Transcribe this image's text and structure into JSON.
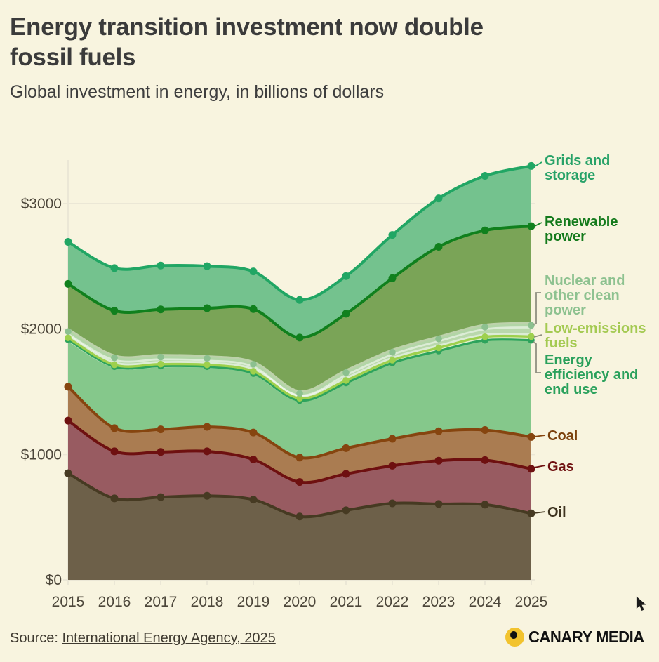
{
  "header": {
    "title_line1": "Energy transition investment now double",
    "title_line2": "fossil fuels",
    "subtitle": "Global investment in energy, in billions of dollars"
  },
  "footer": {
    "source_prefix": "Source: ",
    "source_link": "International Energy Agency, 2025",
    "brand": "CANARY MEDIA"
  },
  "colors": {
    "background": "#f8f4df",
    "gridline": "#ebe7d6",
    "axis_text": "#4c463a",
    "title_text": "#3b3b3b",
    "connector": "#8f9080"
  },
  "chart_data": {
    "type": "area",
    "stacked": true,
    "title": "Energy transition investment now double fossil fuels",
    "subtitle": "Global investment in energy, in billions of dollars",
    "unit": "billions of US dollars",
    "x": [
      2015,
      2016,
      2017,
      2018,
      2019,
      2020,
      2021,
      2022,
      2023,
      2024,
      2025
    ],
    "x_tick_labels": [
      "2015",
      "2016",
      "2017",
      "2018",
      "2019",
      "2020",
      "2021",
      "2022",
      "2023",
      "2024",
      "2025"
    ],
    "yticks": [
      {
        "value": 0,
        "label": "$0"
      },
      {
        "value": 1000,
        "label": "$1000"
      },
      {
        "value": 2000,
        "label": "$2000"
      },
      {
        "value": 3000,
        "label": "$3000"
      }
    ],
    "ylim": [
      0,
      3500
    ],
    "grid": "horizontal",
    "legend_position": "right-annotations",
    "series": [
      {
        "key": "oil",
        "name": "Oil",
        "values": [
          850,
          650,
          660,
          670,
          640,
          505,
          555,
          610,
          605,
          600,
          530
        ],
        "line_color": "#463a22",
        "fill_color": "#6d6049",
        "label_color": "#3f3420"
      },
      {
        "key": "gas",
        "name": "Gas",
        "values": [
          420,
          375,
          360,
          355,
          320,
          275,
          290,
          300,
          345,
          355,
          355
        ],
        "line_color": "#6e1010",
        "fill_color": "#985b61",
        "label_color": "#701111"
      },
      {
        "key": "coal",
        "name": "Coal",
        "values": [
          270,
          185,
          180,
          195,
          215,
          195,
          205,
          215,
          235,
          240,
          255
        ],
        "line_color": "#86450f",
        "fill_color": "#aa7c51",
        "label_color": "#7c420d"
      },
      {
        "key": "eff",
        "name": "Energy efficiency and end use",
        "values": [
          375,
          490,
          505,
          480,
          470,
          455,
          520,
          605,
          640,
          715,
          770
        ],
        "line_color": "#2da35c",
        "fill_color": "#85c88b",
        "label_color": "#2aa15c"
      },
      {
        "key": "lowem",
        "name": "Low-emissions fuels",
        "values": [
          15,
          15,
          15,
          15,
          18,
          18,
          20,
          22,
          25,
          28,
          30
        ],
        "line_color": "#9ed04d",
        "fill_color": "#c3df96",
        "label_color": "#a4ca52"
      },
      {
        "key": "nuclear",
        "name": "Nuclear and other clean power",
        "values": [
          50,
          56,
          56,
          51,
          56,
          39,
          62,
          63,
          71,
          78,
          90
        ],
        "line_color": "#b2d5a6",
        "dot_color": "#8cc08f",
        "fill_color": "#b9d8ac",
        "label_color": "#8ec290"
      },
      {
        "key": "renewable",
        "name": "Renewable power",
        "values": [
          380,
          375,
          380,
          400,
          440,
          445,
          470,
          590,
          735,
          770,
          790
        ],
        "line_color": "#10801d",
        "fill_color": "#7aa457",
        "label_color": "#147a1c"
      },
      {
        "key": "grids",
        "name": "Grids and storage",
        "values": [
          335,
          340,
          350,
          335,
          300,
          300,
          300,
          345,
          385,
          435,
          480
        ],
        "line_color": "#21a664",
        "fill_color": "#74c28e",
        "label_color": "#27a268"
      }
    ],
    "annotations": {
      "grids": {
        "lines": [
          "Grids and",
          "storage"
        ],
        "color": "#27a268"
      },
      "renewable": {
        "lines": [
          "Renewable",
          "power"
        ],
        "color": "#147a1c"
      },
      "nuclear": {
        "lines": [
          "Nuclear and",
          "other clean",
          "power"
        ],
        "color": "#8ec290"
      },
      "lowem": {
        "lines": [
          "Low-emissions",
          "fuels"
        ],
        "color": "#a4ca52"
      },
      "eff": {
        "lines": [
          "Energy",
          "efficiency and",
          "end use"
        ],
        "color": "#2aa15c"
      },
      "coal": {
        "lines": [
          "Coal"
        ],
        "color": "#7c420d"
      },
      "gas": {
        "lines": [
          "Gas"
        ],
        "color": "#701111"
      },
      "oil": {
        "lines": [
          "Oil"
        ],
        "color": "#3f3420"
      }
    }
  }
}
